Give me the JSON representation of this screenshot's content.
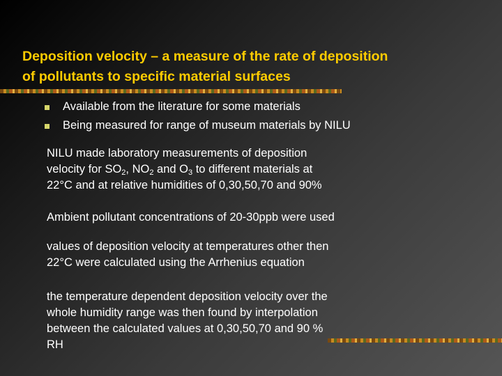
{
  "slide": {
    "title": [
      "Deposition velocity – a measure of the rate of deposition",
      "of pollutants to specific material surfaces"
    ],
    "bullets": [
      "Available from the literature for some materials",
      "Being measured for range of museum materials by NILU"
    ],
    "paragraphs": [
      {
        "lines": [
          [
            "NILU made laboratory measurements of deposition"
          ],
          [
            "velocity for SO",
            {
              "sub": "2"
            },
            ", NO",
            {
              "sub": "2"
            },
            " and O",
            {
              "sub": "3"
            },
            " to different materials at"
          ],
          [
            "22°C and at relative humidities of 0,30,50,70 and 90%"
          ]
        ]
      },
      {
        "lines": [
          [
            "Ambient pollutant concentrations of 20-30ppb were used"
          ]
        ]
      },
      {
        "lines": [
          [
            "values of deposition velocity at temperatures other then"
          ],
          [
            "22°C were calculated using the Arrhenius equation"
          ]
        ]
      },
      {
        "lines": [
          [
            "the temperature dependent deposition velocity over the"
          ],
          [
            "whole humidity range was then found by interpolation"
          ],
          [
            "between the calculated values at 0,30,50,70 and 90 %"
          ],
          [
            "RH"
          ]
        ]
      }
    ]
  }
}
